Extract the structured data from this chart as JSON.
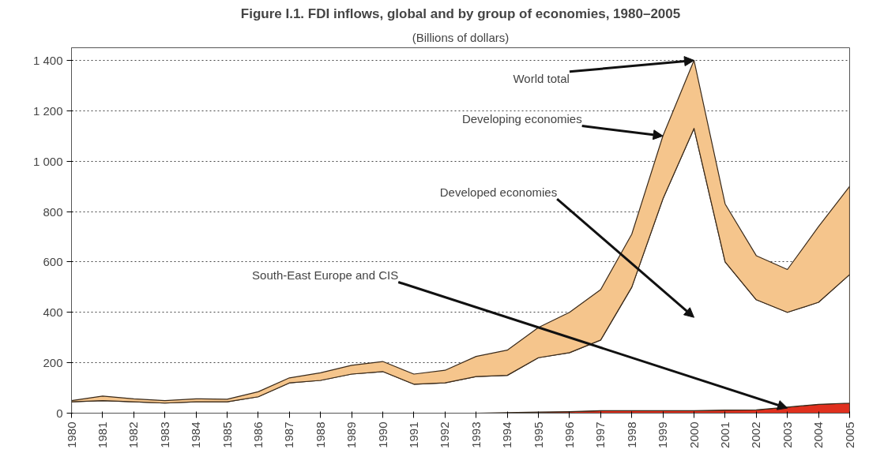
{
  "chart_data": {
    "type": "area",
    "stacked": true,
    "title": "Figure I.1. FDI inflows, global and by group of economies, 1980–2005",
    "subtitle": "(Billions of dollars)",
    "categories": [
      "1980",
      "1981",
      "1982",
      "1983",
      "1984",
      "1985",
      "1986",
      "1987",
      "1988",
      "1989",
      "1990",
      "1991",
      "1992",
      "1993",
      "1994",
      "1995",
      "1996",
      "1997",
      "1998",
      "1999",
      "2000",
      "2001",
      "2002",
      "2003",
      "2004",
      "2005"
    ],
    "series": [
      {
        "color": "#e0301e",
        "values": [
          null,
          null,
          null,
          null,
          null,
          null,
          null,
          null,
          null,
          null,
          null,
          null,
          null,
          null,
          2,
          4,
          6,
          10,
          10,
          10,
          10,
          12,
          13,
          24,
          35,
          40
        ]
      },
      {
        "color": "#ffffff",
        "values": [
          45,
          50,
          45,
          40,
          45,
          45,
          65,
          120,
          130,
          155,
          165,
          115,
          120,
          145,
          148,
          216,
          234,
          280,
          490,
          840,
          1120,
          588,
          437,
          376,
          405,
          510
        ]
      },
      {
        "color": "#f5c58c",
        "values": [
          5,
          18,
          12,
          10,
          12,
          10,
          20,
          20,
          30,
          35,
          40,
          40,
          50,
          80,
          100,
          120,
          160,
          200,
          210,
          250,
          270,
          230,
          175,
          170,
          300,
          350
        ]
      }
    ],
    "ylim": [
      0,
      1450
    ],
    "yticks": [
      0,
      200,
      400,
      600,
      800,
      {
        "value": 1000,
        "label": "1 000"
      },
      {
        "value": 1200,
        "label": "1 200"
      },
      {
        "value": 1400,
        "label": "1 400"
      }
    ],
    "grid": "y",
    "annotations": [
      {
        "text": "World total",
        "x": "2000",
        "y": 1400
      },
      {
        "text": "Developing economies",
        "x": "1999",
        "y": 1100
      },
      "Developed economies",
      {
        "text": "South-East Europe and CIS",
        "x": "2003",
        "y": 20
      }
    ]
  }
}
